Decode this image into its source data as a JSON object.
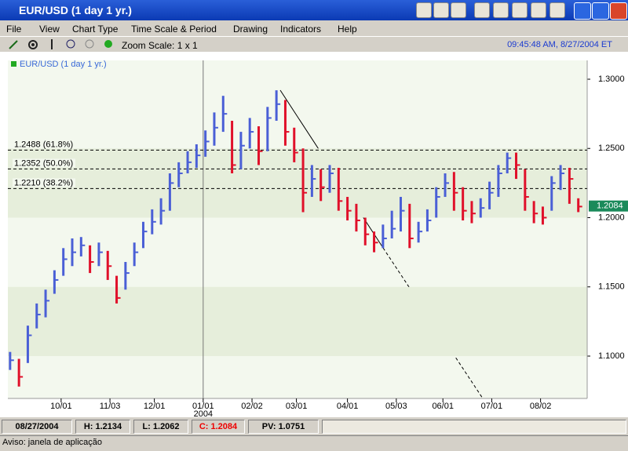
{
  "window": {
    "title": "EUR/USD (1 day  1 yr.)",
    "menu": [
      "File",
      "View",
      "Chart Type",
      "Time Scale & Period",
      "Drawing",
      "Indicators",
      "Help"
    ],
    "zoom": "Zoom Scale: 1 x 1",
    "clock": "09:45:48 AM, 8/27/2004 ET",
    "status": [
      "08/27/2004",
      "H: 1.2134",
      "L: 1.2062",
      "C: 1.2084",
      "PV: 1.0751"
    ],
    "footer": "Aviso: janela de aplicação"
  },
  "chart_data": {
    "type": "bar",
    "legend": "EUR/USD (1 day  1 yr.)",
    "legend_color": "#22aa22",
    "up_color": "#4a5fd6",
    "down_color": "#e0102a",
    "grid": true,
    "xlim": [
      0,
      261
    ],
    "ylim": [
      1.0694,
      1.3136
    ],
    "yticks": [
      {
        "value": 1.1,
        "label": "1.1000"
      },
      {
        "value": 1.15,
        "label": "1.1500"
      },
      {
        "value": 1.2,
        "label": "1.2000"
      },
      {
        "value": 1.25,
        "label": "1.2500"
      },
      {
        "value": 1.3,
        "label": "1.3000"
      }
    ],
    "xticks": [
      {
        "value": 24,
        "label": "10/01"
      },
      {
        "value": 46,
        "label": "11/03"
      },
      {
        "value": 66,
        "label": "12/01"
      },
      {
        "value": 88,
        "label": "01/01"
      },
      {
        "value": 110,
        "label": "02/02"
      },
      {
        "value": 130,
        "label": "03/01"
      },
      {
        "value": 153,
        "label": "04/01"
      },
      {
        "value": 175,
        "label": "05/03"
      },
      {
        "value": 196,
        "label": "06/01"
      },
      {
        "value": 218,
        "label": "07/01"
      },
      {
        "value": 240,
        "label": "08/02"
      }
    ],
    "year_label": "2004",
    "levels": [
      {
        "value": 1.2488,
        "label": "1.2488 (61.8%)"
      },
      {
        "value": 1.2352,
        "label": "1.2352 (50.0%)"
      },
      {
        "value": 1.221,
        "label": "1.2210 (38.2%)"
      }
    ],
    "last_price": {
      "value": 1.2084,
      "label": "1.2084",
      "color": "#1a8a5a"
    },
    "x": [
      1,
      5,
      9,
      13,
      17,
      21,
      25,
      29,
      33,
      37,
      41,
      45,
      49,
      53,
      57,
      61,
      65,
      69,
      73,
      77,
      81,
      85,
      89,
      93,
      97,
      101,
      105,
      109,
      113,
      117,
      121,
      125,
      129,
      133,
      137,
      141,
      145,
      149,
      153,
      157,
      161,
      165,
      169,
      173,
      177,
      181,
      185,
      189,
      193,
      197,
      201,
      205,
      209,
      213,
      217,
      221,
      225,
      229,
      233,
      237,
      241,
      245,
      249,
      253,
      257
    ],
    "high": [
      1.103,
      1.098,
      1.122,
      1.138,
      1.148,
      1.162,
      1.178,
      1.185,
      1.186,
      1.18,
      1.182,
      1.176,
      1.158,
      1.168,
      1.182,
      1.197,
      1.206,
      1.214,
      1.232,
      1.24,
      1.248,
      1.253,
      1.263,
      1.276,
      1.288,
      1.27,
      1.262,
      1.272,
      1.266,
      1.28,
      1.292,
      1.285,
      1.265,
      1.25,
      1.238,
      1.235,
      1.238,
      1.236,
      1.215,
      1.21,
      1.2,
      1.19,
      1.195,
      1.205,
      1.215,
      1.21,
      1.197,
      1.206,
      1.222,
      1.232,
      1.233,
      1.222,
      1.212,
      1.214,
      1.226,
      1.238,
      1.247,
      1.247,
      1.235,
      1.212,
      1.208,
      1.23,
      1.238,
      1.236,
      1.214
    ],
    "low": [
      1.09,
      1.078,
      1.095,
      1.12,
      1.128,
      1.145,
      1.158,
      1.165,
      1.172,
      1.16,
      1.165,
      1.155,
      1.138,
      1.148,
      1.165,
      1.178,
      1.188,
      1.195,
      1.205,
      1.222,
      1.232,
      1.236,
      1.244,
      1.252,
      1.262,
      1.232,
      1.235,
      1.25,
      1.238,
      1.248,
      1.27,
      1.252,
      1.24,
      1.204,
      1.215,
      1.212,
      1.218,
      1.205,
      1.198,
      1.19,
      1.18,
      1.175,
      1.178,
      1.185,
      1.19,
      1.178,
      1.182,
      1.19,
      1.2,
      1.215,
      1.205,
      1.198,
      1.196,
      1.2,
      1.206,
      1.215,
      1.232,
      1.228,
      1.205,
      1.196,
      1.195,
      1.205,
      1.22,
      1.21,
      1.204
    ],
    "close": [
      1.097,
      1.085,
      1.115,
      1.13,
      1.14,
      1.155,
      1.17,
      1.175,
      1.18,
      1.168,
      1.175,
      1.165,
      1.142,
      1.16,
      1.175,
      1.19,
      1.197,
      1.205,
      1.225,
      1.232,
      1.24,
      1.245,
      1.255,
      1.265,
      1.275,
      1.238,
      1.252,
      1.262,
      1.248,
      1.272,
      1.282,
      1.262,
      1.247,
      1.218,
      1.228,
      1.222,
      1.232,
      1.212,
      1.205,
      1.198,
      1.188,
      1.182,
      1.185,
      1.192,
      1.205,
      1.185,
      1.19,
      1.198,
      1.215,
      1.225,
      1.218,
      1.205,
      1.203,
      1.207,
      1.218,
      1.232,
      1.243,
      1.238,
      1.215,
      1.203,
      1.2,
      1.225,
      1.232,
      1.228,
      1.208
    ]
  }
}
